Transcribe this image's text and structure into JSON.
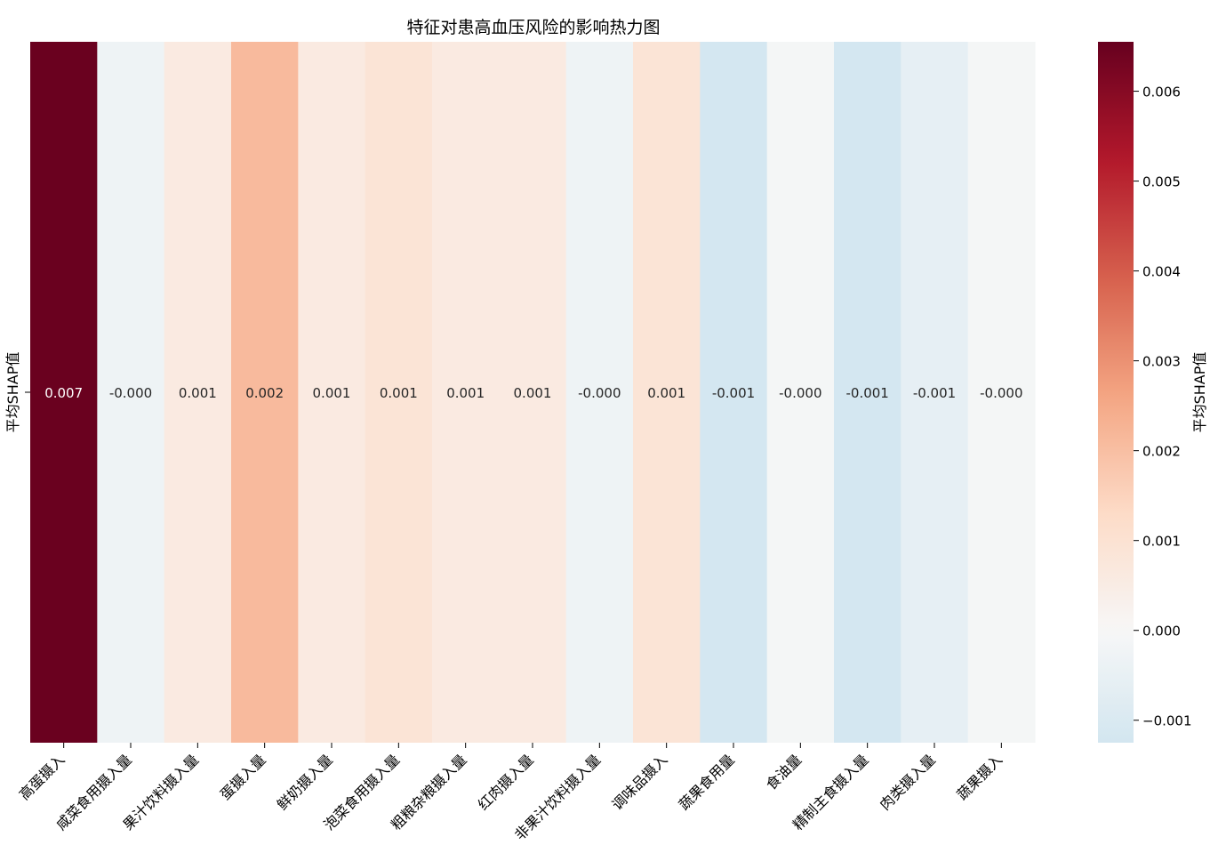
{
  "chart_data": {
    "type": "heatmap",
    "title": "特征对患高血压风险的影响热力图",
    "ylabel": "平均SHAP值",
    "row_labels": [
      "平均SHAP值"
    ],
    "categories": [
      "高蛋摄入",
      "咸菜食用摄入量",
      "果汁饮料摄入量",
      "蛋摄入量",
      "鲜奶摄入量",
      "泡菜食用摄入量",
      "粗粮杂粮摄入量",
      "红肉摄入量",
      "非果汁饮料摄入量",
      "调味品摄入",
      "蔬果食用量",
      "食油量",
      "精制主食摄入量",
      "肉类摄入量",
      "蔬果摄入"
    ],
    "values": [
      0.0065,
      -0.0003,
      0.0006,
      0.0021,
      0.0006,
      0.0009,
      0.0006,
      0.0006,
      -0.0003,
      0.0009,
      -0.0012,
      -0.0001,
      -0.0012,
      -0.0006,
      -0.0001
    ],
    "annotations": [
      "0.007",
      "-0.000",
      "0.001",
      "0.002",
      "0.001",
      "0.001",
      "0.001",
      "0.001",
      "-0.000",
      "0.001",
      "-0.001",
      "-0.000",
      "-0.001",
      "-0.001",
      "-0.000"
    ],
    "colormap": "RdBu_r",
    "vmin": -0.00125,
    "vmax": 0.00655,
    "center": 0,
    "colorbar": {
      "label": "平均SHAP值",
      "ticks": [
        -0.001,
        0.0,
        0.001,
        0.002,
        0.003,
        0.004,
        0.005,
        0.006
      ],
      "tick_labels": [
        "−0.001",
        "0.000",
        "0.001",
        "0.002",
        "0.003",
        "0.004",
        "0.005",
        "0.006"
      ]
    }
  }
}
